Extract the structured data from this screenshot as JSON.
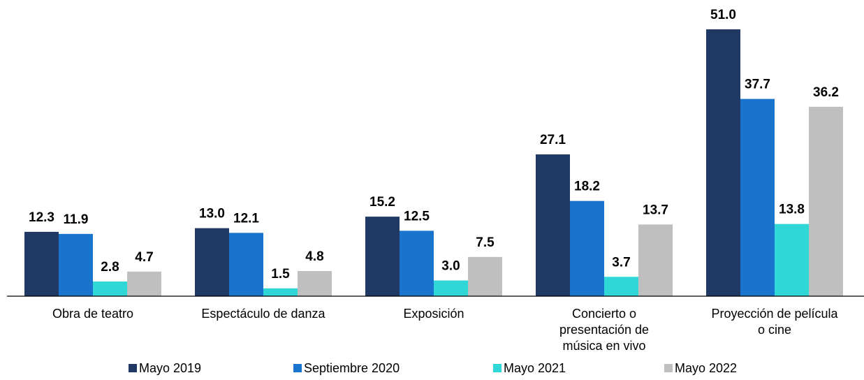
{
  "chart_data": {
    "type": "bar",
    "categories": [
      "Obra de teatro",
      "Espectáculo de danza",
      "Exposición",
      "Concierto o\npresentación de\nmúsica en vivo",
      "Proyección de película\no cine"
    ],
    "series": [
      {
        "name": "Mayo 2019",
        "color": "#203864",
        "values": [
          12.3,
          13.0,
          15.2,
          27.1,
          51.0
        ],
        "value_labels": [
          "12.3",
          "13.0",
          "15.2",
          "27.1",
          "51.0"
        ]
      },
      {
        "name": "Septiembre 2020",
        "color": "#1874cd",
        "values": [
          11.9,
          12.1,
          12.5,
          18.2,
          37.7
        ],
        "value_labels": [
          "11.9",
          "12.1",
          "12.5",
          "18.2",
          "37.7"
        ]
      },
      {
        "name": "Mayo 2021",
        "color": "#2fd8d6",
        "values": [
          2.8,
          1.5,
          3.0,
          3.7,
          13.8
        ],
        "value_labels": [
          "2.8",
          "1.5",
          "3.0",
          "3.7",
          "13.8"
        ]
      },
      {
        "name": "Mayo 2022",
        "color": "#bfbfbf",
        "values": [
          4.7,
          4.8,
          7.5,
          13.7,
          36.2
        ],
        "value_labels": [
          "4.7",
          "4.8",
          "7.5",
          "13.7",
          "36.2"
        ]
      }
    ]
  }
}
